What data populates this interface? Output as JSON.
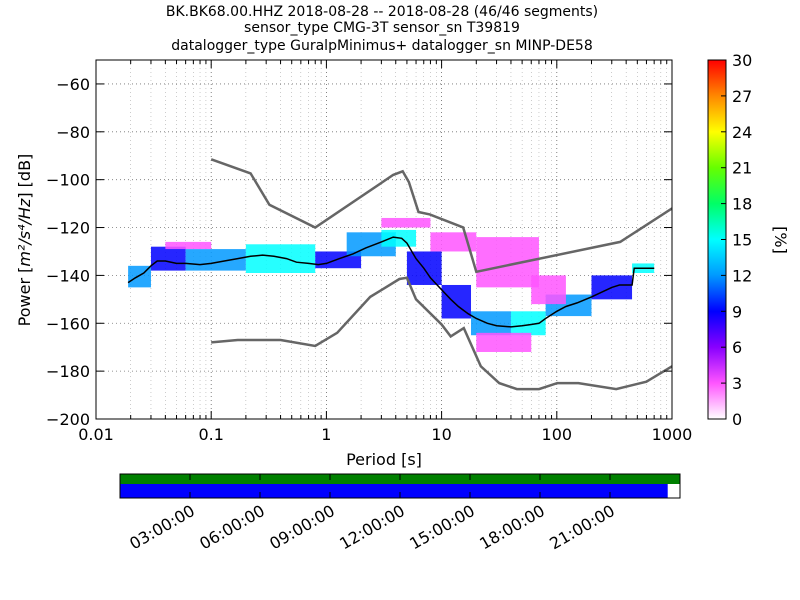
{
  "chart_data": {
    "type": "heatmap",
    "title_lines": [
      "BK.BK68.00.HHZ   2018-08-28 -- 2018-08-28  (46/46 segments)",
      "sensor_type CMG-3T sensor_sn T39819",
      "datalogger_type GuralpMinimus+ datalogger_sn MINP-DE58"
    ],
    "xlabel": "Period [s]",
    "ylabel_prefix": "Power [",
    "ylabel_units": "m²/s⁴/Hz",
    "ylabel_suffix": "] [dB]",
    "x_scale": "log",
    "xlim": [
      0.01,
      1000
    ],
    "ylim": [
      -200,
      -50
    ],
    "x_ticks": [
      {
        "value": 0.01,
        "label": "0.01"
      },
      {
        "value": 0.1,
        "label": "0.1"
      },
      {
        "value": 1,
        "label": "1"
      },
      {
        "value": 10,
        "label": "10"
      },
      {
        "value": 100,
        "label": "100"
      },
      {
        "value": 1000,
        "label": "1000"
      }
    ],
    "y_ticks": [
      {
        "value": -60,
        "label": "−60"
      },
      {
        "value": -80,
        "label": "−80"
      },
      {
        "value": -100,
        "label": "−100"
      },
      {
        "value": -120,
        "label": "−120"
      },
      {
        "value": -140,
        "label": "−140"
      },
      {
        "value": -160,
        "label": "−160"
      },
      {
        "value": -180,
        "label": "−180"
      },
      {
        "value": -200,
        "label": "−200"
      }
    ],
    "grid": true,
    "colorbar": {
      "label": "[%]",
      "range": [
        0,
        30
      ],
      "ticks": [
        {
          "value": 0,
          "label": "0"
        },
        {
          "value": 3,
          "label": "3"
        },
        {
          "value": 6,
          "label": "6"
        },
        {
          "value": 9,
          "label": "9"
        },
        {
          "value": 12,
          "label": "12"
        },
        {
          "value": 15,
          "label": "15"
        },
        {
          "value": 18,
          "label": "18"
        },
        {
          "value": 21,
          "label": "21"
        },
        {
          "value": 24,
          "label": "24"
        },
        {
          "value": 27,
          "label": "27"
        },
        {
          "value": 30,
          "label": "30"
        }
      ],
      "colors": [
        "#ffffff",
        "#ff55ff",
        "#8800ff",
        "#0000ff",
        "#0099ff",
        "#00ffff",
        "#00ff66",
        "#66ff00",
        "#ffff00",
        "#ff8800",
        "#ff0000"
      ]
    },
    "nhnm": [
      [
        0.1,
        -168
      ],
      [
        0.17,
        -167
      ],
      [
        0.4,
        -167
      ],
      [
        0.8,
        -169.5
      ],
      [
        1.24,
        -164
      ],
      [
        2.4,
        -149
      ],
      [
        4.3,
        -141.5
      ],
      [
        5.0,
        -141
      ],
      [
        6.0,
        -150
      ],
      [
        10,
        -160.5
      ],
      [
        12,
        -165.5
      ],
      [
        15.6,
        -162
      ],
      [
        21.9,
        -178
      ],
      [
        31.6,
        -185
      ],
      [
        45,
        -187.5
      ],
      [
        70,
        -187.5
      ],
      [
        101,
        -185
      ],
      [
        154,
        -185
      ],
      [
        328,
        -187.5
      ],
      [
        600,
        -184.4
      ],
      [
        1000,
        -178
      ]
    ],
    "nlnm": [
      [
        0.1,
        -91.5
      ],
      [
        0.22,
        -97.4
      ],
      [
        0.32,
        -110.5
      ],
      [
        0.8,
        -120
      ],
      [
        3.8,
        -98
      ],
      [
        4.6,
        -96.5
      ],
      [
        5.2,
        -101
      ],
      [
        6.3,
        -113.5
      ],
      [
        7.9,
        -114.5
      ],
      [
        15.4,
        -120
      ],
      [
        20,
        -138.5
      ],
      [
        354.8,
        -126
      ],
      [
        1000,
        -112
      ]
    ],
    "mode": [
      [
        0.019,
        -143
      ],
      [
        0.022,
        -141
      ],
      [
        0.026,
        -139
      ],
      [
        0.03,
        -136
      ],
      [
        0.034,
        -134
      ],
      [
        0.04,
        -134
      ],
      [
        0.05,
        -135
      ],
      [
        0.06,
        -135
      ],
      [
        0.08,
        -135.5
      ],
      [
        0.1,
        -135
      ],
      [
        0.13,
        -134
      ],
      [
        0.17,
        -133
      ],
      [
        0.22,
        -132
      ],
      [
        0.28,
        -131.5
      ],
      [
        0.35,
        -132
      ],
      [
        0.45,
        -133
      ],
      [
        0.55,
        -134.5
      ],
      [
        0.7,
        -135
      ],
      [
        0.85,
        -135.5
      ],
      [
        1.0,
        -135
      ],
      [
        1.3,
        -133
      ],
      [
        1.7,
        -131
      ],
      [
        2.2,
        -128.5
      ],
      [
        3.0,
        -126
      ],
      [
        3.8,
        -124
      ],
      [
        4.5,
        -124.5
      ],
      [
        5.0,
        -126.5
      ],
      [
        6.0,
        -133
      ],
      [
        7.0,
        -137
      ],
      [
        8.0,
        -141
      ],
      [
        10,
        -146
      ],
      [
        12,
        -150
      ],
      [
        14,
        -153
      ],
      [
        17,
        -156
      ],
      [
        20,
        -158
      ],
      [
        25,
        -160
      ],
      [
        30,
        -161
      ],
      [
        40,
        -161.5
      ],
      [
        50,
        -161
      ],
      [
        60,
        -160.5
      ],
      [
        70,
        -160
      ],
      [
        80,
        -158
      ],
      [
        100,
        -155
      ],
      [
        120,
        -153
      ],
      [
        150,
        -151.5
      ],
      [
        200,
        -149
      ],
      [
        300,
        -145
      ],
      [
        350,
        -144
      ],
      [
        450,
        -144
      ],
      [
        470,
        -137
      ],
      [
        700,
        -137
      ]
    ],
    "pdf_bands": [
      {
        "x": [
          0.019,
          0.03
        ],
        "y": [
          -145,
          -136
        ],
        "value": 12
      },
      {
        "x": [
          0.03,
          0.06
        ],
        "y": [
          -138,
          -128
        ],
        "value": 9
      },
      {
        "x": [
          0.06,
          0.2
        ],
        "y": [
          -138,
          -129
        ],
        "value": 12
      },
      {
        "x": [
          0.2,
          0.8
        ],
        "y": [
          -139,
          -127
        ],
        "value": 15
      },
      {
        "x": [
          0.8,
          2.0
        ],
        "y": [
          -137,
          -130
        ],
        "value": 9
      },
      {
        "x": [
          1.5,
          4.0
        ],
        "y": [
          -132,
          -122
        ],
        "value": 12
      },
      {
        "x": [
          3.0,
          6.0
        ],
        "y": [
          -128,
          -121
        ],
        "value": 15
      },
      {
        "x": [
          5.0,
          10
        ],
        "y": [
          -144,
          -130
        ],
        "value": 9
      },
      {
        "x": [
          10,
          18
        ],
        "y": [
          -158,
          -144
        ],
        "value": 9
      },
      {
        "x": [
          18,
          40
        ],
        "y": [
          -165,
          -155
        ],
        "value": 12
      },
      {
        "x": [
          40,
          80
        ],
        "y": [
          -165,
          -155
        ],
        "value": 15
      },
      {
        "x": [
          80,
          200
        ],
        "y": [
          -157,
          -148
        ],
        "value": 12
      },
      {
        "x": [
          200,
          450
        ],
        "y": [
          -150,
          -140
        ],
        "value": 9
      },
      {
        "x": [
          450,
          700
        ],
        "y": [
          -139,
          -135
        ],
        "value": 15
      },
      {
        "x": [
          3.0,
          8.0
        ],
        "y": [
          -120,
          -116
        ],
        "value": 3
      },
      {
        "x": [
          8.0,
          20
        ],
        "y": [
          -130,
          -122
        ],
        "value": 2
      },
      {
        "x": [
          20,
          70
        ],
        "y": [
          -145,
          -124
        ],
        "value": 2
      },
      {
        "x": [
          20,
          60
        ],
        "y": [
          -172,
          -164
        ],
        "value": 3
      },
      {
        "x": [
          60,
          120
        ],
        "y": [
          -152,
          -140
        ],
        "value": 2
      },
      {
        "x": [
          0.04,
          0.1
        ],
        "y": [
          -129,
          -126
        ],
        "value": 4
      }
    ],
    "data_coverage": {
      "track_color": "#008000",
      "coverage_color": "#0000ff",
      "coverage_fraction": 0.978,
      "ticks": [
        "03:00:00",
        "06:00:00",
        "09:00:00",
        "12:00:00",
        "15:00:00",
        "18:00:00",
        "21:00:00"
      ]
    }
  }
}
